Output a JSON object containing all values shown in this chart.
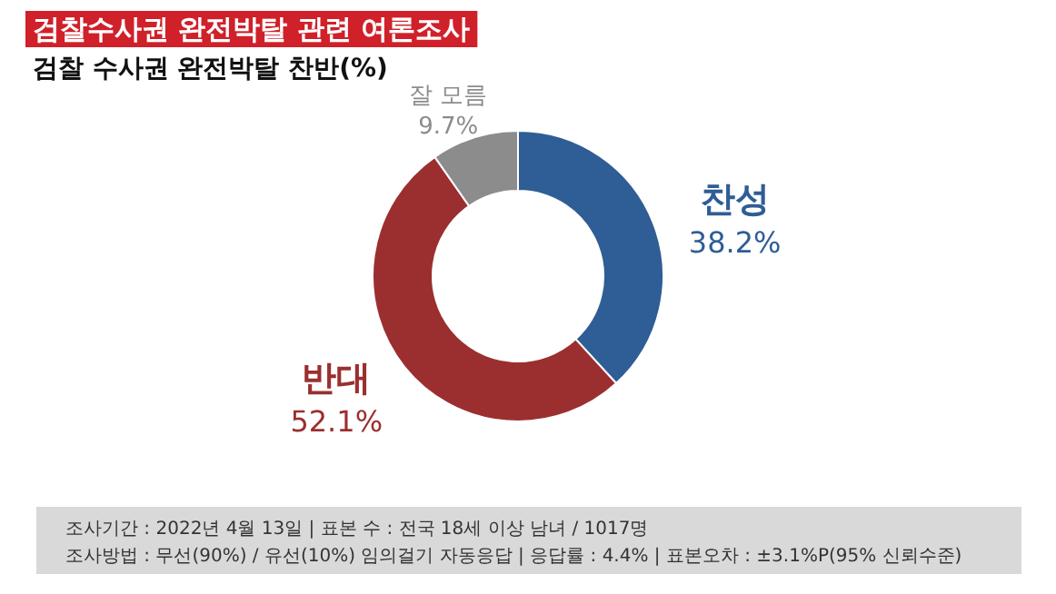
{
  "chart_data": {
    "type": "donut",
    "title": "검찰수사권 완전박탈 관련 여론조사",
    "subtitle": "검찰 수사권 완전박탈 찬반(%)",
    "categories": [
      "찬성",
      "반대",
      "잘 모름"
    ],
    "values": [
      38.2,
      52.1,
      9.7
    ],
    "colors": [
      "#2f5d95",
      "#9b2f2f",
      "#8c8c8c"
    ],
    "value_labels": [
      "38.2%",
      "52.1%",
      "9.7%"
    ],
    "annotations": [
      "조사기간 : 2022년 4월 13일  |  표본 수 : 전국 18세 이상 남녀 / 1017명",
      "조사방법 : 무선(90%) / 유선(10%) 임의걸기 자동응답  |  응답률 : 4.4%  |  표본오차 : ±3.1%P(95% 신뢰수준)"
    ]
  }
}
